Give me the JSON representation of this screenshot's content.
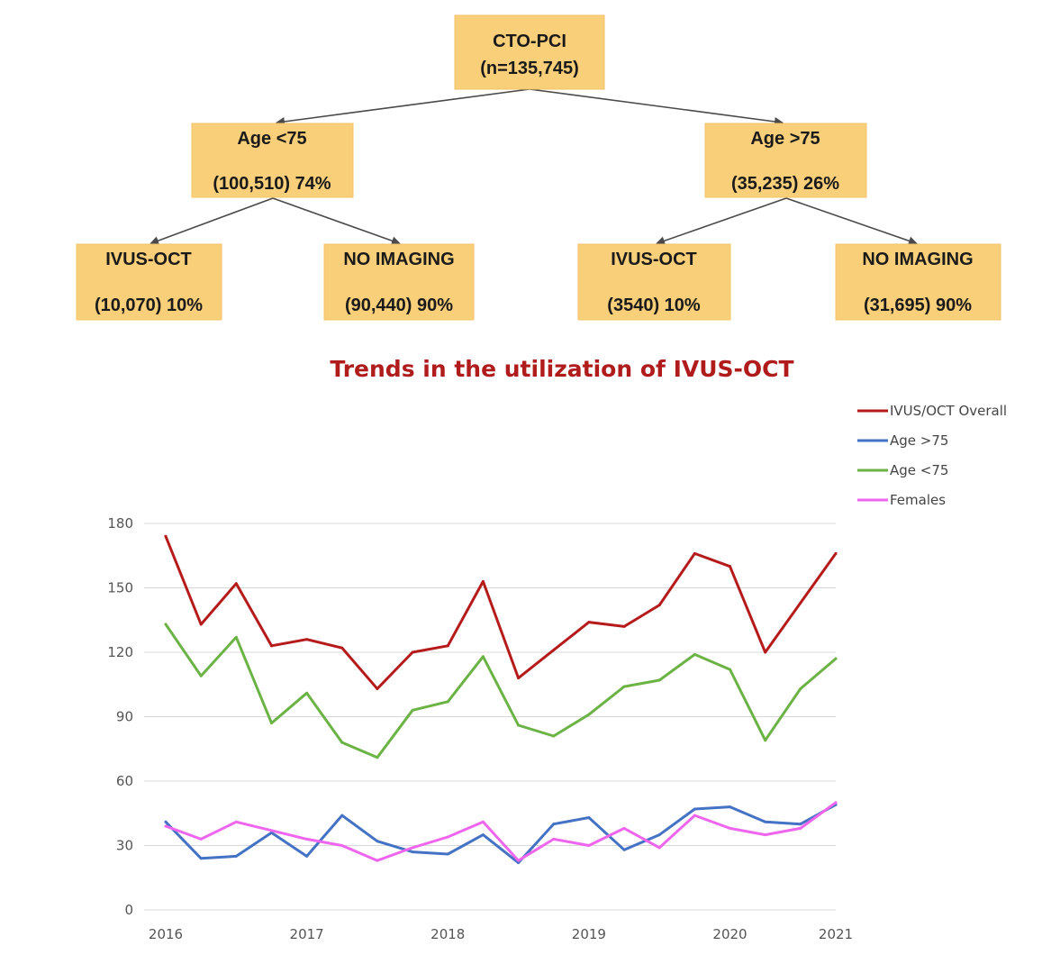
{
  "tree": {
    "root": {
      "line1": "CTO-PCI",
      "line2": "(n=135,745)"
    },
    "left": {
      "line1": "Age <75",
      "line2": "(100,510) 74%"
    },
    "right": {
      "line1": "Age >75",
      "line2": "(35,235) 26%"
    },
    "ll": {
      "line1": "IVUS-OCT",
      "line2": "(10,070) 10%"
    },
    "lr": {
      "line1": "NO IMAGING",
      "line2": "(90,440) 90%"
    },
    "rl": {
      "line1": "IVUS-OCT",
      "line2": "(3540) 10%"
    },
    "rr": {
      "line1": "NO IMAGING",
      "line2": "(31,695) 90%"
    }
  },
  "chart_data": {
    "type": "line",
    "title": "Trends in the utilization of IVUS-OCT",
    "title_color": "#b01c1c",
    "xlabel": "",
    "ylabel": "",
    "x": [
      2016,
      2016.25,
      2016.5,
      2016.75,
      2017,
      2017.25,
      2017.5,
      2017.75,
      2018,
      2018.25,
      2018.5,
      2018.75,
      2019,
      2019.25,
      2019.5,
      2019.75,
      2020,
      2020.25,
      2020.5,
      2020.75
    ],
    "xlim": [
      2016,
      2020.75
    ],
    "xticks": [
      {
        "v": 2016,
        "label": "2016"
      },
      {
        "v": 2017,
        "label": "2017"
      },
      {
        "v": 2018,
        "label": "2018"
      },
      {
        "v": 2019,
        "label": "2019"
      },
      {
        "v": 2020,
        "label": "2020"
      },
      {
        "v": 2020.75,
        "label": "2021"
      }
    ],
    "ylim": [
      0,
      180
    ],
    "yticks": [
      "0",
      "30",
      "60",
      "90",
      "120",
      "150",
      "180"
    ],
    "grid": true,
    "legend_position": "top-right",
    "series": [
      {
        "name": "IVUS/OCT Overall",
        "color": "#b51b1b",
        "values": [
          174,
          133,
          152,
          123,
          126,
          122,
          103,
          120,
          123,
          153,
          108,
          121,
          134,
          132,
          142,
          166,
          160,
          120,
          143,
          166
        ]
      },
      {
        "name": "Age >75",
        "color": "#4472c4",
        "values": [
          41,
          24,
          25,
          36,
          25,
          44,
          32,
          27,
          26,
          35,
          22,
          40,
          43,
          28,
          35,
          47,
          48,
          41,
          40,
          49
        ]
      },
      {
        "name": "Age <75",
        "color": "#6ab344",
        "values": [
          133,
          109,
          127,
          87,
          101,
          78,
          71,
          93,
          97,
          118,
          86,
          81,
          91,
          104,
          107,
          119,
          112,
          79,
          103,
          117
        ]
      },
      {
        "name": "Females",
        "color": "#ee66ee",
        "values": [
          39,
          33,
          41,
          37,
          33,
          30,
          23,
          29,
          34,
          41,
          23,
          33,
          30,
          38,
          29,
          44,
          38,
          35,
          38,
          50
        ]
      }
    ]
  }
}
